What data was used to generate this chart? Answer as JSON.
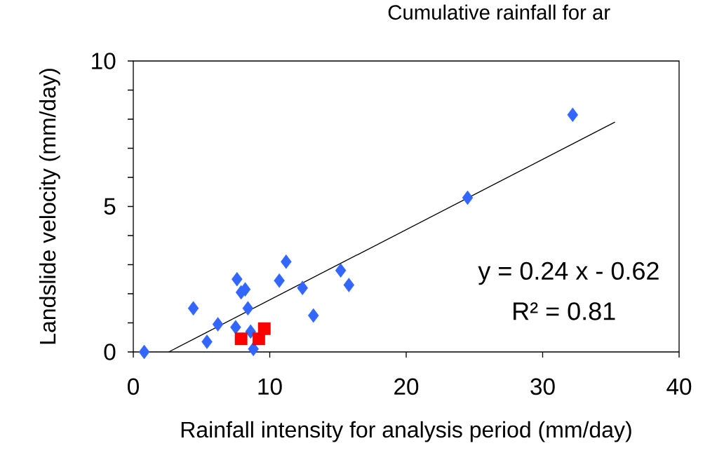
{
  "chart_data": {
    "type": "scatter",
    "title": "Cumulative rainfall for ar",
    "xlabel": "Rainfall intensity for analysis period (mm/day)",
    "ylabel": "Landslide velocity (mm/day)",
    "xlim": [
      0,
      40
    ],
    "ylim": [
      0,
      10
    ],
    "xticks": [
      0,
      10,
      20,
      30,
      40
    ],
    "yticks": [
      0,
      {
        "value": 1,
        "label": null
      },
      {
        "value": 2,
        "label": null
      },
      {
        "value": 3,
        "label": null
      },
      {
        "value": 4,
        "label": null
      },
      5,
      {
        "value": 6,
        "label": null
      },
      {
        "value": 7,
        "label": null
      },
      {
        "value": 8,
        "label": null
      },
      {
        "value": 9,
        "label": null
      },
      10
    ],
    "grid": false,
    "annotations": [
      "y = 0.24 x - 0.62",
      "R² = 0.81"
    ],
    "series": [
      {
        "marker": "diamond",
        "color": "#3366ff",
        "x": [
          0.8,
          4.4,
          5.4,
          6.2,
          7.6,
          7.5,
          7.9,
          8.2,
          8.4,
          8.6,
          8.8,
          10.7,
          11.2,
          12.4,
          13.2,
          15.2,
          15.8,
          24.5,
          32.2
        ],
        "values": [
          0,
          1.5,
          0.35,
          0.95,
          2.5,
          0.85,
          2.05,
          2.15,
          1.5,
          0.7,
          0.1,
          2.45,
          3.1,
          2.2,
          1.25,
          2.8,
          2.3,
          5.3,
          8.15
        ]
      },
      {
        "marker": "square",
        "color": "#ff0000",
        "x": [
          7.9,
          9.2,
          9.6
        ],
        "values": [
          0.45,
          0.45,
          0.8
        ]
      },
      {
        "type": "line",
        "marker": "none",
        "color": "#000000",
        "x": [
          2.6,
          35.3
        ],
        "values": [
          0,
          7.9
        ]
      }
    ]
  }
}
